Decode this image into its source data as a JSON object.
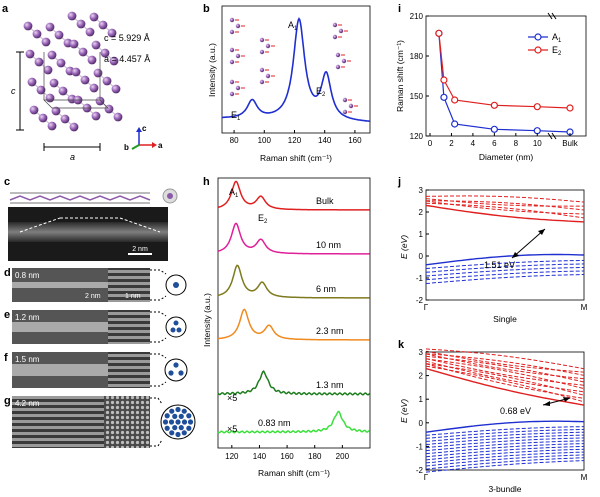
{
  "panels": {
    "a": {
      "label": "a",
      "c_label": "c = 5.929 Å",
      "a_label": "a = 4.457 Å",
      "c_dim": "c",
      "a_dim": "a",
      "axes": {
        "b": "b",
        "c": "c",
        "a": "a"
      }
    },
    "b": {
      "label": "b",
      "ylabel": "Intensity (a.u.)",
      "xlabel": "Raman shift (cm⁻¹)",
      "peak_A1": "A",
      "peak_A1_sub": "1",
      "peak_E2": "E",
      "peak_E2_sub": "2",
      "peak_E1": "E",
      "peak_E1_sub": "1",
      "xticks": [
        "80",
        "100",
        "120",
        "140",
        "160"
      ]
    },
    "c": {
      "label": "c",
      "scale": "2 nm"
    },
    "d": {
      "label": "d",
      "diam": "0.8 nm",
      "scale": "2 nm",
      "scale2": "1 nm"
    },
    "e": {
      "label": "e",
      "diam": "1.2 nm"
    },
    "f": {
      "label": "f",
      "diam": "1.5 nm"
    },
    "g": {
      "label": "g",
      "diam": "4.2 nm"
    },
    "h": {
      "label": "h",
      "ylabel": "Intensity (a.u.)",
      "xlabel": "Raman shift (cm⁻¹)",
      "peak_A1": "A",
      "peak_A1_sub": "1",
      "peak_E2": "E",
      "peak_E2_sub": "2",
      "xticks": [
        "120",
        "140",
        "160",
        "180",
        "200"
      ],
      "trace_labels": [
        "Bulk",
        "10 nm",
        "6 nm",
        "2.3 nm",
        "1.3 nm",
        "0.83 nm"
      ],
      "mult_1": "×5",
      "mult_2": "×5"
    },
    "i": {
      "label": "i",
      "ylabel": "Raman shift (cm⁻¹)",
      "xlabel": "Diameter (nm)",
      "yticks": [
        "120",
        "150",
        "180",
        "210"
      ],
      "xticks": [
        "0",
        "2",
        "4",
        "6",
        "8",
        "10",
        "Bulk"
      ],
      "legend_A1": "A",
      "legend_A1_sub": "1",
      "legend_E2": "E",
      "legend_E2_sub": "2"
    },
    "j": {
      "label": "j",
      "ylabel": "E (eV)",
      "xlabel": "Single",
      "gap": "1.51 eV",
      "yticks": [
        "-2",
        "-1",
        "0",
        "1",
        "2",
        "3"
      ],
      "x_gamma": "Γ",
      "x_m": "M"
    },
    "k": {
      "label": "k",
      "ylabel": "E (eV)",
      "xlabel": "3-bundle",
      "gap": "0.68 eV",
      "yticks": [
        "-2",
        "-1",
        "0",
        "1",
        "2",
        "3"
      ],
      "x_gamma": "Γ",
      "x_m": "M"
    }
  },
  "colors": {
    "blue": "#1f2fd0",
    "red": "#e02020",
    "magenta": "#e0209a",
    "olive": "#7e7a1e",
    "orange": "#f08a1e",
    "green": "#1e7d1e",
    "lime": "#3ce03c",
    "atom": "#8c5aa8"
  },
  "chart_data": [
    {
      "type": "line",
      "panel": "b",
      "x_range": [
        72,
        170
      ],
      "peaks": [
        {
          "name": "E1",
          "x": 92,
          "height": 0.18
        },
        {
          "name": "A1",
          "x": 123,
          "height": 1.0
        },
        {
          "name": "E2",
          "x": 141,
          "height": 0.44
        }
      ]
    },
    {
      "type": "line",
      "panel": "h",
      "x_range": [
        110,
        220
      ],
      "series": [
        {
          "name": "Bulk",
          "peaks": [
            [
              123,
              1.0
            ],
            [
              141,
              0.45
            ]
          ]
        },
        {
          "name": "10 nm",
          "peaks": [
            [
              123,
              1.0
            ],
            [
              141,
              0.45
            ]
          ]
        },
        {
          "name": "6 nm",
          "peaks": [
            [
              124,
              1.0
            ],
            [
              142,
              0.45
            ]
          ]
        },
        {
          "name": "2.3 nm",
          "peaks": [
            [
              129,
              1.0
            ],
            [
              147,
              0.45
            ]
          ]
        },
        {
          "name": "1.3 nm",
          "peaks": [
            [
              143,
              1.0
            ]
          ]
        },
        {
          "name": "0.83 nm",
          "peaks": [
            [
              197,
              1.0
            ]
          ]
        }
      ]
    },
    {
      "type": "line",
      "panel": "i",
      "ylim": [
        120,
        210
      ],
      "series": [
        {
          "name": "A1",
          "x": [
            0.83,
            1.3,
            2.3,
            6,
            10,
            "Bulk"
          ],
          "values": [
            197,
            149,
            129,
            125,
            124,
            123
          ]
        },
        {
          "name": "E2",
          "x": [
            0.83,
            1.3,
            2.3,
            6,
            10,
            "Bulk"
          ],
          "values": [
            197,
            162,
            147,
            143,
            142,
            141
          ]
        }
      ]
    }
  ]
}
